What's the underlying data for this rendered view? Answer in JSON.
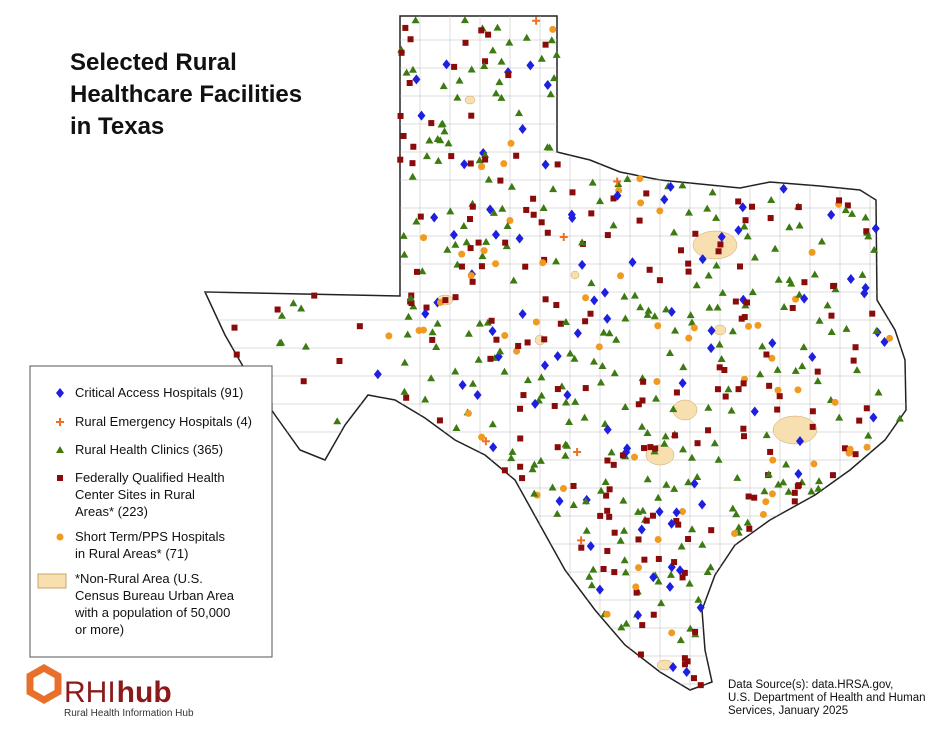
{
  "header": {
    "title_lines": [
      "Selected Rural",
      "Healthcare Facilities",
      "in Texas"
    ]
  },
  "legend": {
    "items": [
      {
        "lines": [
          "Critical Access Hospitals (91)"
        ]
      },
      {
        "lines": [
          "Rural Emergency Hospitals (4)"
        ]
      },
      {
        "lines": [
          "Rural Health Clinics (365)"
        ]
      },
      {
        "lines": [
          "Federally Qualified Health",
          "Center Sites in Rural",
          "Areas* (223)"
        ]
      },
      {
        "lines": [
          "Short Term/PPS Hospitals",
          "in Rural Areas* (71)"
        ]
      },
      {
        "lines": [
          "*Non-Rural Area (U.S.",
          "Census Bureau Urban Area",
          "with a population of 50,000",
          "or more)"
        ]
      }
    ]
  },
  "source": {
    "lines": [
      "Data Source(s): data.HRSA.gov,",
      "U.S. Department of Health and Human",
      "Services, January 2025"
    ]
  },
  "logo": {
    "brand_a": "RHI",
    "brand_b": "hub",
    "tagline": "Rural Health Information Hub"
  }
}
